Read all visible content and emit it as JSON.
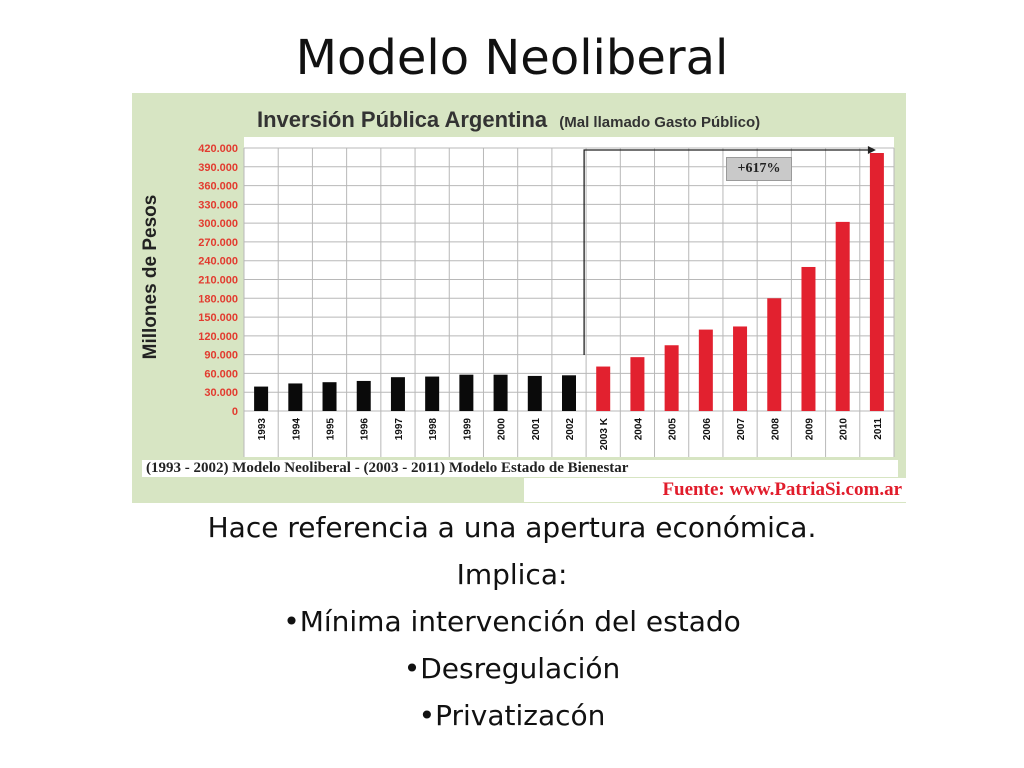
{
  "slide": {
    "title": "Modelo Neoliberal",
    "lines": [
      "Hace referencia a una apertura económica.",
      "Implica:",
      "•Mínima intervención del estado",
      "•Desregulación",
      "•Privatizacón"
    ]
  },
  "chart_data": {
    "type": "bar",
    "title": "Inversión Pública Argentina",
    "subtitle": "(Mal llamado Gasto Público)",
    "ylabel": "Millones de Pesos",
    "xlabel": "",
    "ylim": [
      0,
      420000
    ],
    "ytick_values": [
      0,
      30000,
      60000,
      90000,
      120000,
      150000,
      180000,
      210000,
      240000,
      270000,
      300000,
      330000,
      360000,
      390000,
      420000
    ],
    "ytick_labels": [
      "0",
      "30.000",
      "60.000",
      "90.000",
      "120.000",
      "150.000",
      "180.000",
      "210.000",
      "240.000",
      "270.000",
      "300.000",
      "330.000",
      "360.000",
      "390.000",
      "420.000"
    ],
    "categories": [
      "1993",
      "1994",
      "1995",
      "1996",
      "1997",
      "1998",
      "1999",
      "2000",
      "2001",
      "2002",
      "2003 K",
      "2004",
      "2005",
      "2006",
      "2007",
      "2008",
      "2009",
      "2010",
      "2011"
    ],
    "values": [
      39000,
      44000,
      46000,
      48000,
      54000,
      55000,
      58000,
      58000,
      56000,
      57000,
      71000,
      86000,
      105000,
      130000,
      135000,
      180000,
      230000,
      302000,
      412000
    ],
    "colors": {
      "neoliberal": "#0a0a0a",
      "bienestar": "#e2212f",
      "grid": "#b8b8b8",
      "tick_label": "#e23b2f"
    },
    "split_index": 10,
    "annotation": "+617%",
    "footer": "(1993 - 2002) Modelo Neoliberal - (2003 - 2011) Modelo Estado de Bienestar",
    "source": "Fuente: www.PatriaSi.com.ar",
    "grid": true
  }
}
